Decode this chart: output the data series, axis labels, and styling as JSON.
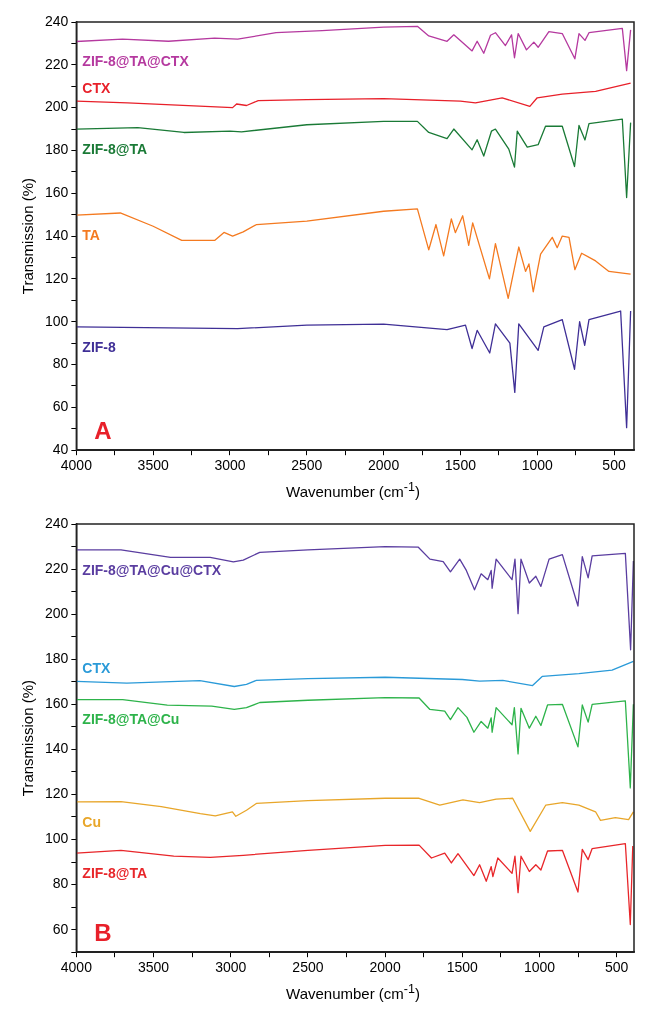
{
  "chart_data": [
    {
      "type": "line",
      "xlabel": "Wavenumber (cm$^{-1}$)",
      "ylabel": "Transmission (%)",
      "xlim": [
        4000,
        370
      ],
      "ylim": [
        40,
        240
      ],
      "xticks": [
        4000,
        {
          "value": 3750,
          "label": null
        },
        3500,
        {
          "value": 3250,
          "label": null
        },
        3000,
        {
          "value": 2750,
          "label": null
        },
        2500,
        {
          "value": 2250,
          "label": null
        },
        2000,
        {
          "value": 1750,
          "label": null
        },
        1500,
        {
          "value": 1250,
          "label": null
        },
        1000,
        {
          "value": 750,
          "label": null
        },
        500
      ],
      "yticks": [
        40,
        {
          "value": 50,
          "label": null
        },
        60,
        {
          "value": 70,
          "label": null
        },
        80,
        {
          "value": 90,
          "label": null
        },
        100,
        {
          "value": 110,
          "label": null
        },
        120,
        {
          "value": 130,
          "label": null
        },
        140,
        {
          "value": 150,
          "label": null
        },
        160,
        {
          "value": 170,
          "label": null
        },
        180,
        {
          "value": 190,
          "label": null
        },
        200,
        {
          "value": 210,
          "label": null
        },
        220,
        {
          "value": 230,
          "label": null
        },
        240
      ],
      "grid": false,
      "annotations": [
        "A"
      ],
      "series": [
        {
          "name": "ZIF-8@TA@CTX",
          "color": "#b5399f",
          "x": [
            4000,
            3700,
            3400,
            3100,
            2950,
            2700,
            2400,
            2000,
            1780,
            1706,
            1587,
            1543,
            1424,
            1391,
            1348,
            1304,
            1272,
            1207,
            1167,
            1148,
            1124,
            1070,
            1022,
            994,
            924,
            837,
            755,
            728,
            689,
            663,
            446,
            418,
            392
          ],
          "values": [
            230.9,
            232,
            231,
            232.5,
            232,
            235,
            236,
            237.6,
            238,
            233.5,
            231,
            234,
            226.5,
            231,
            225.4,
            233.8,
            235,
            229,
            234,
            223.3,
            234.6,
            227,
            230.6,
            228.2,
            235.5,
            234.6,
            222.8,
            234.6,
            231.4,
            235,
            237,
            217.3,
            236.3
          ]
        },
        {
          "name": "CTX",
          "color": "#e8202a",
          "x": [
            4000,
            3667,
            2983,
            2957,
            2892,
            2816,
            2500,
            2000,
            1500,
            1402,
            1228,
            1048,
            1000,
            837,
            620,
            392
          ],
          "values": [
            203,
            202.2,
            200,
            201.7,
            201,
            203.3,
            203.7,
            204.2,
            203,
            202.2,
            204.6,
            200.6,
            204.6,
            206.3,
            207.6,
            211.5
          ]
        },
        {
          "name": "ZIF-8@TA",
          "color": "#1a7a36",
          "x": [
            4000,
            3600,
            3300,
            3000,
            2925,
            2500,
            2000,
            1780,
            1706,
            1587,
            1543,
            1424,
            1391,
            1348,
            1298,
            1272,
            1185,
            1148,
            1130,
            1065,
            994,
            946,
            837,
            757,
            728,
            689,
            663,
            446,
            418,
            392
          ],
          "values": [
            190,
            190.7,
            188.4,
            189,
            188.7,
            192,
            193.6,
            193.6,
            188.4,
            185.5,
            190,
            180.3,
            185,
            177.4,
            189,
            190,
            180.6,
            172.2,
            189,
            181.6,
            182.7,
            191.3,
            191.3,
            172.5,
            191.7,
            184.9,
            192.5,
            194.6,
            158,
            193
          ]
        },
        {
          "name": "TA",
          "color": "#f47a20",
          "x": [
            4000,
            3714,
            3500,
            3314,
            3100,
            3039,
            2983,
            2914,
            2827,
            2500,
            2000,
            1780,
            1706,
            1659,
            1609,
            1559,
            1533,
            1485,
            1446,
            1420,
            1311,
            1272,
            1189,
            1120,
            1076,
            1054,
            1026,
            978,
            902,
            870,
            837,
            793,
            755,
            711,
            620,
            533,
            392
          ],
          "values": [
            149.8,
            150.8,
            144.6,
            138,
            138,
            141.7,
            140,
            142,
            145.4,
            147,
            151.6,
            152.7,
            133.6,
            145.4,
            130.8,
            148,
            141.6,
            149.5,
            135.7,
            146.2,
            120,
            136.5,
            110.9,
            134.9,
            123.5,
            127,
            114,
            131.6,
            139.4,
            134.6,
            140,
            139.4,
            124.3,
            132,
            128.4,
            123.5,
            122.2
          ]
        },
        {
          "name": "ZIF-8",
          "color": "#3f2f96",
          "x": [
            4000,
            2950,
            2500,
            2000,
            1587,
            1467,
            1424,
            1391,
            1309,
            1272,
            1178,
            1146,
            1120,
            994,
            957,
            837,
            757,
            724,
            691,
            663,
            457,
            418,
            392
          ],
          "values": [
            97.6,
            96.8,
            98.4,
            98.9,
            96.3,
            98.4,
            87.5,
            96,
            85.4,
            99,
            90,
            67,
            99,
            86.6,
            97.6,
            101,
            77.8,
            100,
            89,
            101,
            105,
            50.5,
            105
          ]
        }
      ]
    },
    {
      "type": "line",
      "xlabel": "Wavenumber (cm$^{-1}$)",
      "ylabel": "Transmission (%)",
      "xlim": [
        4000,
        388
      ],
      "ylim": [
        50,
        240
      ],
      "xticks": [
        4000,
        {
          "value": 3750,
          "label": null
        },
        3500,
        {
          "value": 3250,
          "label": null
        },
        3000,
        {
          "value": 2750,
          "label": null
        },
        2500,
        {
          "value": 2250,
          "label": null
        },
        2000,
        {
          "value": 1750,
          "label": null
        },
        1500,
        {
          "value": 1250,
          "label": null
        },
        1000,
        {
          "value": 750,
          "label": null
        },
        500
      ],
      "yticks": [
        {
          "value": 50,
          "label": null
        },
        60,
        {
          "value": 70,
          "label": null
        },
        80,
        {
          "value": 90,
          "label": null
        },
        100,
        {
          "value": 110,
          "label": null
        },
        120,
        {
          "value": 130,
          "label": null
        },
        140,
        {
          "value": 150,
          "label": null
        },
        160,
        {
          "value": 170,
          "label": null
        },
        180,
        {
          "value": 190,
          "label": null
        },
        200,
        {
          "value": 210,
          "label": null
        },
        220,
        {
          "value": 230,
          "label": null
        },
        240
      ],
      "grid": false,
      "annotations": [
        "B"
      ],
      "series": [
        {
          "name": "ZIF-8@TA@Cu@CTX",
          "color": "#5a3da0",
          "x": [
            4000,
            3711,
            3390,
            3133,
            2983,
            2919,
            2812,
            2500,
            2000,
            1785,
            1710,
            1624,
            1577,
            1517,
            1474,
            1421,
            1378,
            1335,
            1313,
            1307,
            1281,
            1178,
            1159,
            1139,
            1120,
            1066,
            1024,
            991,
            938,
            852,
            751,
            723,
            685,
            659,
            444,
            410,
            392
          ],
          "values": [
            228.5,
            228.5,
            225.2,
            225.2,
            223.2,
            224,
            227.4,
            228.5,
            230,
            229.7,
            224.4,
            223.3,
            218.8,
            224.4,
            219.4,
            210.8,
            217.9,
            215.3,
            219.4,
            211.5,
            224.4,
            215.3,
            224.4,
            200.2,
            224.4,
            213.8,
            216.8,
            212.3,
            224.4,
            226.4,
            203.6,
            225.5,
            216.1,
            225.9,
            227,
            184.2,
            223.6
          ]
        },
        {
          "name": "CTX",
          "color": "#2a9ad8",
          "x": [
            4000,
            3673,
            3200,
            2977,
            2898,
            2834,
            2500,
            2000,
            1500,
            1388,
            1238,
            1045,
            981,
            745,
            530,
            392
          ],
          "values": [
            170.2,
            169.4,
            170.5,
            167.9,
            168.8,
            170.6,
            171.4,
            172,
            171,
            170.3,
            170.6,
            168.3,
            172.4,
            173.6,
            175.2,
            179
          ]
        },
        {
          "name": "ZIF-8@TA@Cu",
          "color": "#2db34a",
          "x": [
            4000,
            3700,
            3411,
            3123,
            2977,
            2898,
            2812,
            2500,
            2000,
            1780,
            1710,
            1614,
            1577,
            1528,
            1470,
            1425,
            1378,
            1335,
            1313,
            1307,
            1281,
            1178,
            1163,
            1139,
            1120,
            1066,
            1024,
            991,
            948,
            852,
            751,
            723,
            685,
            659,
            444,
            412,
            392
          ],
          "values": [
            162.1,
            162.1,
            159.6,
            159.2,
            157.7,
            158.5,
            160.8,
            161.8,
            163,
            162.8,
            157.7,
            157,
            153.2,
            158.5,
            154.2,
            147.6,
            152.4,
            149.4,
            154,
            147.6,
            158.5,
            150.9,
            158.5,
            138,
            158.2,
            149.4,
            154.7,
            150.6,
            159.7,
            160,
            141.1,
            159.7,
            152.1,
            160,
            161.5,
            122.9,
            160
          ]
        },
        {
          "name": "Cu",
          "color": "#e8a62a",
          "x": [
            4000,
            3711,
            3450,
            3197,
            3100,
            2989,
            2967,
            2898,
            2834,
            2500,
            2000,
            1780,
            1646,
            1496,
            1388,
            1281,
            1174,
            1060,
            959,
            852,
            745,
            637,
            605,
            509,
            423,
            392
          ],
          "values": [
            116.7,
            116.8,
            114.6,
            111.5,
            110.5,
            112.3,
            110.3,
            113,
            116,
            117.3,
            118.3,
            118.3,
            115.3,
            117.6,
            116.4,
            117.9,
            118.3,
            103.6,
            115.3,
            116.4,
            115.3,
            112.3,
            108.5,
            109.7,
            108.8,
            112.3
          ]
        },
        {
          "name": "ZIF-8@TA",
          "color": "#e8262a",
          "x": [
            4000,
            3711,
            3369,
            3133,
            2919,
            2500,
            2000,
            1780,
            1700,
            1614,
            1571,
            1528,
            1425,
            1388,
            1345,
            1313,
            1302,
            1270,
            1178,
            1159,
            1139,
            1120,
            1066,
            1024,
            991,
            948,
            852,
            751,
            723,
            685,
            659,
            444,
            412,
            396
          ],
          "values": [
            94,
            95.2,
            92.6,
            92.1,
            93,
            95.2,
            97.4,
            97.5,
            91.8,
            94,
            89.6,
            93.7,
            84,
            88.8,
            81.5,
            88,
            83.5,
            91.8,
            85,
            92.6,
            76.4,
            92.6,
            85.8,
            88.8,
            86.5,
            94.9,
            95.2,
            76.7,
            95.6,
            91.1,
            96,
            98.2,
            62.3,
            97.1
          ]
        }
      ]
    }
  ]
}
